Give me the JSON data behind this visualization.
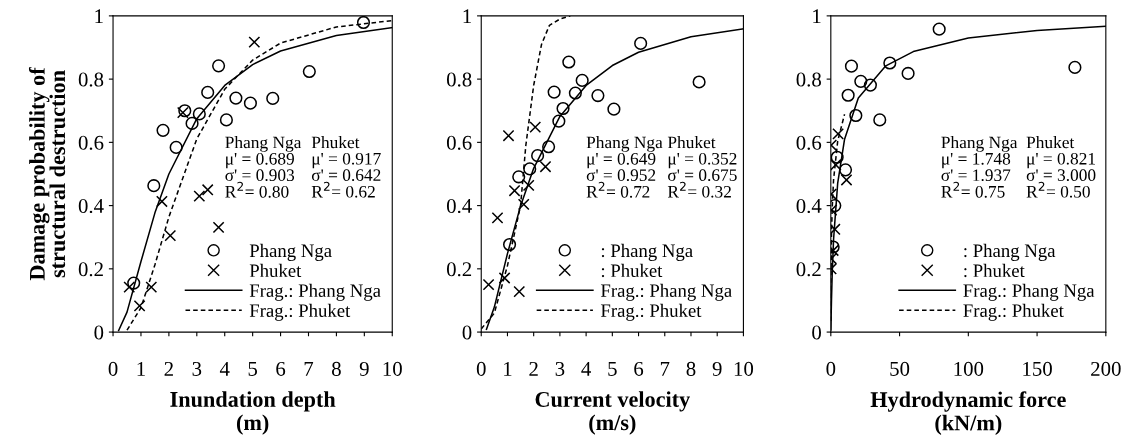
{
  "chart_data": [
    {
      "type": "scatter",
      "xlabel": "Inundation depth\n(m)",
      "ylabel": "Damage probability of\nstructural destruction",
      "xlim": [
        0,
        10
      ],
      "xticks": [
        0,
        1,
        2,
        3,
        4,
        5,
        6,
        7,
        8,
        9,
        10
      ],
      "ylim": [
        0,
        1
      ],
      "yticks": [
        0,
        0.2,
        0.4,
        0.6,
        0.8,
        1
      ],
      "grid": false,
      "legend": "bottom right",
      "annotations": [
        "Phang Nga\nμ' = 0.689\nσ' = 0.903\nR$^{2}$= 0.80",
        "Phuket\nμ' = 0.917\nσ' = 0.642\nR$^{2}$= 0.62"
      ],
      "series": [
        {
          "name": "Phang Nga",
          "marker": "circle",
          "color": "#000000",
          "x": [
            0.74,
            1.46,
            1.79,
            2.26,
            2.57,
            2.83,
            3.09,
            3.39,
            3.78,
            4.06,
            4.4,
            4.92,
            5.72,
            7.03,
            8.97
          ],
          "values": [
            0.155,
            0.463,
            0.638,
            0.584,
            0.7,
            0.66,
            0.69,
            0.758,
            0.842,
            0.671,
            0.74,
            0.724,
            0.739,
            0.824,
            0.979
          ]
        },
        {
          "name": "Phuket",
          "marker": "cross",
          "color": "#000000",
          "x": [
            0.58,
            0.95,
            1.37,
            1.75,
            2.05,
            2.5,
            3.09,
            3.39,
            3.78,
            5.06
          ],
          "values": [
            0.142,
            0.083,
            0.142,
            0.413,
            0.305,
            0.694,
            0.43,
            0.45,
            0.331,
            0.917
          ]
        },
        {
          "name": "Frag.: Phang Nga",
          "type": "line",
          "line_style": "solid",
          "color": "#000000",
          "x": [
            0.2,
            0.5,
            1,
            1.5,
            2,
            3,
            4,
            5,
            6,
            8,
            10
          ],
          "values": [
            0.005,
            0.063,
            0.223,
            0.377,
            0.5,
            0.675,
            0.78,
            0.846,
            0.889,
            0.938,
            0.963
          ]
        },
        {
          "name": "Frag.: Phuket",
          "type": "line",
          "line_style": "dashed",
          "color": "#000000",
          "x": [
            0.5,
            1,
            1.5,
            2,
            3,
            4,
            5,
            6,
            8,
            10
          ],
          "values": [
            0.006,
            0.077,
            0.213,
            0.364,
            0.611,
            0.768,
            0.86,
            0.914,
            0.965,
            0.985
          ]
        }
      ]
    },
    {
      "type": "scatter",
      "xlabel": "Current velocity\n(m/s)",
      "xlim": [
        0,
        10
      ],
      "xticks": [
        0,
        1,
        2,
        3,
        4,
        5,
        6,
        7,
        8,
        9,
        10
      ],
      "ylim": [
        0,
        1
      ],
      "yticks": [
        0,
        0.2,
        0.4,
        0.6,
        0.8,
        1
      ],
      "grid": false,
      "legend": "bottom right",
      "annotations": [
        "Phang Nga\nμ' = 0.649\nσ' = 0.952\nR$^{2}$= 0.72",
        "Phuket\nμ' = 0.352\nσ' = 0.675\nR$^{2}$= 0.32"
      ],
      "series": [
        {
          "name": ": Phang Nga",
          "marker": "circle",
          "color": "#000000",
          "x": [
            1.08,
            1.43,
            1.85,
            2.15,
            2.57,
            2.78,
            2.96,
            3.12,
            3.34,
            3.59,
            3.85,
            4.45,
            5.06,
            6.08,
            8.31
          ],
          "values": [
            0.277,
            0.491,
            0.516,
            0.558,
            0.586,
            0.759,
            0.667,
            0.707,
            0.854,
            0.756,
            0.796,
            0.748,
            0.705,
            0.913,
            0.791
          ]
        },
        {
          "name": ": Phuket",
          "marker": "cross",
          "color": "#000000",
          "x": [
            0.28,
            0.62,
            0.89,
            1.04,
            1.27,
            1.45,
            1.62,
            1.81,
            2.06,
            2.45
          ],
          "values": [
            0.15,
            0.361,
            0.171,
            0.621,
            0.447,
            0.128,
            0.404,
            0.464,
            0.648,
            0.523
          ]
        },
        {
          "name": "Frag.: Phang Nga",
          "type": "line",
          "line_style": "solid",
          "color": "#000000",
          "x": [
            0.2,
            0.5,
            1,
            1.5,
            2,
            3,
            4,
            5,
            6,
            8,
            10
          ],
          "values": [
            0.009,
            0.079,
            0.248,
            0.399,
            0.518,
            0.682,
            0.78,
            0.843,
            0.885,
            0.934,
            0.959
          ]
        },
        {
          "name": "Frag.: Phuket",
          "type": "line",
          "line_style": "dashed",
          "color": "#000000",
          "x": [
            0,
            0.5,
            1,
            1.5,
            1.7,
            2,
            2.3,
            2.6,
            3,
            3.4
          ],
          "values": [
            0.01,
            0.06,
            0.21,
            0.4,
            0.59,
            0.78,
            0.91,
            0.97,
            0.99,
            1
          ]
        }
      ]
    },
    {
      "type": "scatter",
      "xlabel": "Hydrodynamic force\n(kN/m)",
      "xlim": [
        0,
        200
      ],
      "xticks": [
        0,
        50,
        100,
        150,
        200
      ],
      "ylim": [
        0,
        1
      ],
      "yticks": [
        0,
        0.2,
        0.4,
        0.6,
        0.8,
        1
      ],
      "grid": false,
      "legend": "bottom right",
      "annotations": [
        "Phang Nga\nμ' = 1.748\nσ' = 1.937\nR$^{2}$= 0.75",
        "Phuket\nμ' = 0.821\nσ' = 3.000\nR$^{2}$= 0.50"
      ],
      "series": [
        {
          "name": ": Phang Nga",
          "marker": "circle",
          "color": "#000000",
          "x": [
            78.8,
            15.0,
            42.9,
            56.2,
            21.8,
            28.8,
            12.6,
            18.2,
            35.6,
            177.5,
            4.6,
            10.7,
            2.9,
            1.7
          ],
          "values": [
            0.958,
            0.841,
            0.851,
            0.818,
            0.793,
            0.781,
            0.749,
            0.685,
            0.671,
            0.837,
            0.553,
            0.513,
            0.4,
            0.269
          ]
        },
        {
          "name": ": Phuket",
          "marker": "cross",
          "color": "#000000",
          "x": [
            5.3,
            0.3,
            3.6,
            11.4,
            0.2,
            0.5,
            2.9,
            1.7,
            0.3,
            0.2
          ],
          "values": [
            0.627,
            0.591,
            0.529,
            0.481,
            0.436,
            0.386,
            0.325,
            0.258,
            0.232,
            0.2
          ]
        },
        {
          "name": "Frag.: Phang Nga",
          "type": "line",
          "line_style": "solid",
          "color": "#000000",
          "x": [
            0.05,
            0.1,
            0.2,
            0.5,
            1,
            2,
            5,
            10,
            20,
            40,
            60,
            100,
            150,
            200
          ],
          "values": [
            0.007,
            0.018,
            0.042,
            0.104,
            0.183,
            0.293,
            0.471,
            0.61,
            0.74,
            0.842,
            0.887,
            0.93,
            0.954,
            0.967
          ]
        },
        {
          "name": "Frag.: Phuket",
          "type": "line",
          "line_style": "dashed",
          "color": "#000000",
          "x": [
            0.01,
            0.1,
            0.5,
            1,
            2,
            5,
            10
          ],
          "values": [
            0.035,
            0.149,
            0.307,
            0.392,
            0.482,
            0.604,
            0.689
          ]
        }
      ]
    }
  ]
}
